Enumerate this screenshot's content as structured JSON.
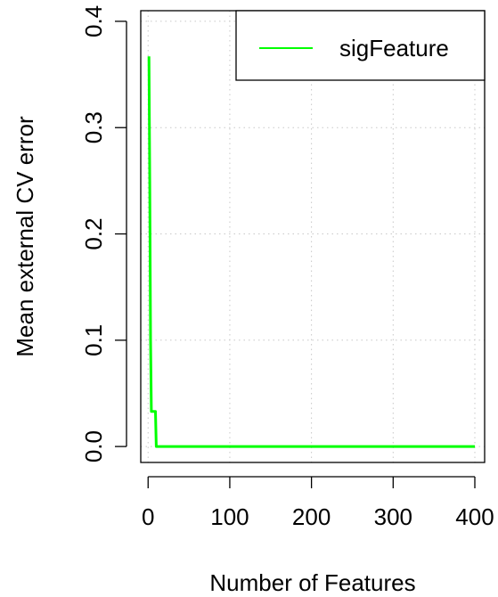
{
  "chart_data": {
    "type": "line",
    "title": "",
    "xlabel": "Number of Features",
    "ylabel": "Mean external CV error",
    "xlim": [
      -9,
      412
    ],
    "ylim": [
      -0.015,
      0.41
    ],
    "xticks": [
      0,
      100,
      200,
      300,
      400
    ],
    "yticks": [
      0.0,
      0.1,
      0.2,
      0.3,
      0.4
    ],
    "xtick_labels": [
      "0",
      "100",
      "200",
      "300",
      "400"
    ],
    "ytick_labels": [
      "0.0",
      "0.1",
      "0.2",
      "0.3",
      "0.4"
    ],
    "grid": true,
    "legend_position": "top-right",
    "series": [
      {
        "name": "sigFeature",
        "color": "#00ff00",
        "x": [
          1,
          2,
          3,
          4,
          5,
          6,
          8,
          9,
          10,
          11,
          400
        ],
        "y": [
          0.367,
          0.25,
          0.1,
          0.033,
          0.033,
          0.033,
          0.033,
          0.033,
          0.0,
          0.0,
          0.0
        ]
      }
    ]
  }
}
